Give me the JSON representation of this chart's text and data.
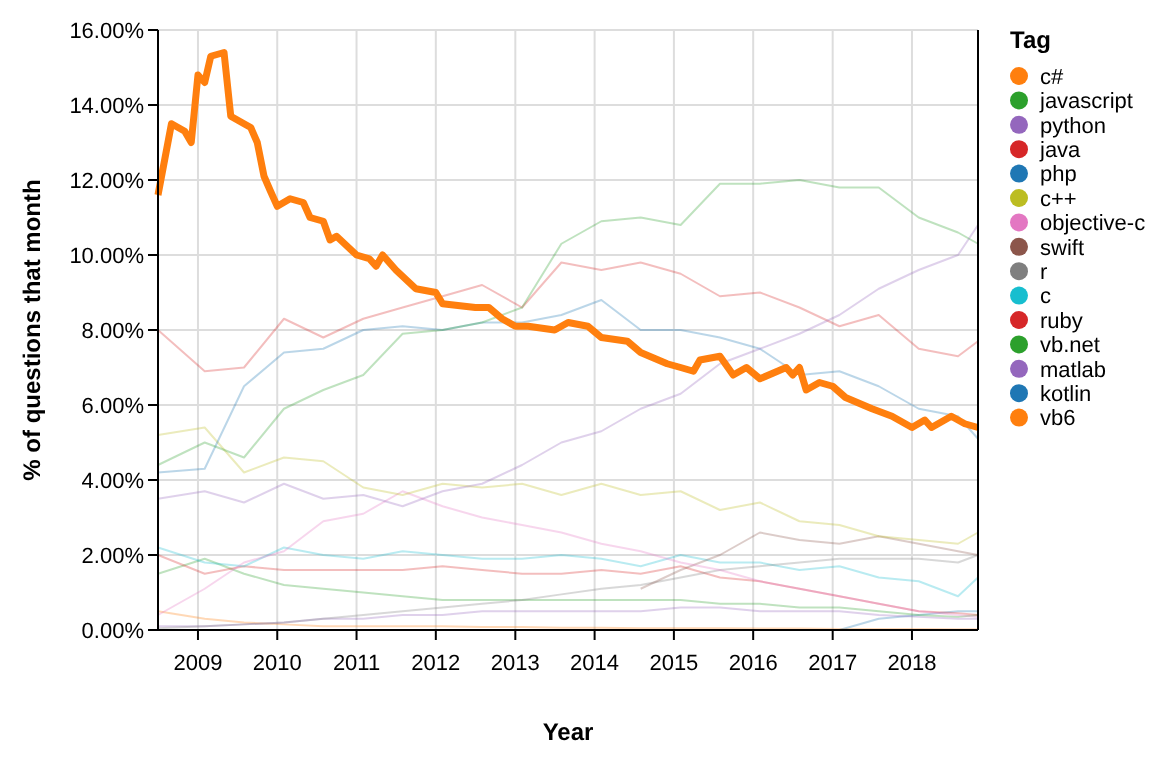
{
  "chart_data": {
    "type": "line",
    "xlabel": "Year",
    "ylabel": "% of questions that month",
    "legend_title": "Tag",
    "legend": "right",
    "grid": true,
    "marker": "none",
    "line_style": "solid",
    "xlim": [
      "2008-07",
      "2018-11"
    ],
    "xticks": [
      "2009",
      "2010",
      "2011",
      "2012",
      "2013",
      "2014",
      "2015",
      "2016",
      "2017",
      "2018"
    ],
    "ylim": [
      0,
      16
    ],
    "yticks": [
      {
        "value": 0,
        "label": "0.00%"
      },
      {
        "value": 2,
        "label": "2.00%"
      },
      {
        "value": 4,
        "label": "4.00%"
      },
      {
        "value": 6,
        "label": "6.00%"
      },
      {
        "value": 8,
        "label": "8.00%"
      },
      {
        "value": 10,
        "label": "10.00%"
      },
      {
        "value": 12,
        "label": "12.00%"
      },
      {
        "value": 14,
        "label": "14.00%"
      },
      {
        "value": 16,
        "label": "16.00%"
      }
    ],
    "x": [
      "2008-07",
      "2009-02",
      "2009-08",
      "2010-02",
      "2010-08",
      "2011-02",
      "2011-08",
      "2012-02",
      "2012-08",
      "2013-02",
      "2013-08",
      "2014-02",
      "2014-08",
      "2015-02",
      "2015-08",
      "2016-02",
      "2016-08",
      "2017-02",
      "2017-08",
      "2018-02",
      "2018-08",
      "2018-11"
    ],
    "series": [
      {
        "name": "c#",
        "color": "#ff7f0e",
        "x": [
          "2008-07",
          "2008-09",
          "2008-11",
          "2008-12",
          "2009-01",
          "2009-02",
          "2009-03",
          "2009-05",
          "2009-06",
          "2009-08",
          "2009-09",
          "2009-10",
          "2009-11",
          "2009-12",
          "2010-01",
          "2010-03",
          "2010-05",
          "2010-06",
          "2010-08",
          "2010-09",
          "2010-10",
          "2011-01",
          "2011-03",
          "2011-04",
          "2011-05",
          "2011-07",
          "2011-10",
          "2012-01",
          "2012-02",
          "2012-07",
          "2012-09",
          "2012-11",
          "2013-01",
          "2013-03",
          "2013-07",
          "2013-09",
          "2013-12",
          "2014-02",
          "2014-06",
          "2014-08",
          "2014-12",
          "2015-02",
          "2015-04",
          "2015-05",
          "2015-08",
          "2015-10",
          "2015-12",
          "2016-02",
          "2016-06",
          "2016-07",
          "2016-08",
          "2016-09",
          "2016-11",
          "2017-01",
          "2017-03",
          "2017-07",
          "2017-10",
          "2018-01",
          "2018-03",
          "2018-04",
          "2018-07",
          "2018-09",
          "2018-11"
        ],
        "values": [
          11.6,
          13.5,
          13.3,
          13.0,
          14.8,
          14.6,
          15.3,
          15.4,
          13.7,
          13.5,
          13.4,
          13.0,
          12.1,
          11.7,
          11.3,
          11.5,
          11.4,
          11.0,
          10.9,
          10.4,
          10.5,
          10.0,
          9.9,
          9.7,
          10.0,
          9.6,
          9.1,
          9.0,
          8.7,
          8.6,
          8.6,
          8.3,
          8.1,
          8.1,
          8.0,
          8.2,
          8.1,
          7.8,
          7.7,
          7.4,
          7.1,
          7.0,
          6.9,
          7.2,
          7.3,
          6.8,
          7.0,
          6.7,
          7.0,
          6.8,
          7.0,
          6.4,
          6.6,
          6.5,
          6.2,
          5.9,
          5.7,
          5.4,
          5.6,
          5.4,
          5.7,
          5.5,
          5.4
        ]
      },
      {
        "name": "javascript",
        "color": "#2ca02c",
        "values": [
          4.4,
          5.0,
          4.6,
          5.9,
          6.4,
          6.8,
          7.9,
          8.0,
          8.2,
          8.6,
          10.3,
          10.9,
          11.0,
          10.8,
          11.9,
          11.9,
          12.0,
          11.8,
          11.8,
          11.0,
          10.6,
          10.3
        ]
      },
      {
        "name": "python",
        "color": "#9467bd",
        "values": [
          3.5,
          3.7,
          3.4,
          3.9,
          3.5,
          3.6,
          3.3,
          3.7,
          3.9,
          4.4,
          5.0,
          5.3,
          5.9,
          6.3,
          7.1,
          7.5,
          7.9,
          8.4,
          9.1,
          9.6,
          10.0,
          10.8
        ]
      },
      {
        "name": "java",
        "color": "#d62728",
        "values": [
          8.0,
          6.9,
          7.0,
          8.3,
          7.8,
          8.3,
          8.6,
          8.9,
          9.2,
          8.6,
          9.8,
          9.6,
          9.8,
          9.5,
          8.9,
          9.0,
          8.6,
          8.1,
          8.4,
          7.5,
          7.3,
          7.7
        ]
      },
      {
        "name": "php",
        "color": "#1f77b4",
        "values": [
          4.2,
          4.3,
          6.5,
          7.4,
          7.5,
          8.0,
          8.1,
          8.0,
          8.2,
          8.2,
          8.4,
          8.8,
          8.0,
          8.0,
          7.8,
          7.5,
          6.8,
          6.9,
          6.5,
          5.9,
          5.7,
          5.1
        ]
      },
      {
        "name": "c++",
        "color": "#bcbd22",
        "values": [
          5.2,
          5.4,
          4.2,
          4.6,
          4.5,
          3.8,
          3.6,
          3.9,
          3.8,
          3.9,
          3.6,
          3.9,
          3.6,
          3.7,
          3.2,
          3.4,
          2.9,
          2.8,
          2.5,
          2.4,
          2.3,
          2.6
        ]
      },
      {
        "name": "objective-c",
        "color": "#e377c2",
        "values": [
          0.4,
          1.1,
          1.8,
          2.1,
          2.9,
          3.1,
          3.7,
          3.3,
          3.0,
          2.8,
          2.6,
          2.3,
          2.1,
          1.8,
          1.6,
          1.3,
          1.1,
          0.9,
          0.7,
          0.5,
          0.4,
          0.35
        ]
      },
      {
        "name": "swift",
        "color": "#8c564b",
        "values": [
          null,
          null,
          null,
          null,
          null,
          null,
          null,
          null,
          null,
          null,
          null,
          null,
          1.1,
          1.6,
          2.0,
          2.6,
          2.4,
          2.3,
          2.5,
          2.3,
          2.1,
          2.0
        ]
      },
      {
        "name": "r",
        "color": "#7f7f7f",
        "values": [
          0.05,
          0.1,
          0.15,
          0.2,
          0.3,
          0.4,
          0.5,
          0.6,
          0.7,
          0.8,
          0.95,
          1.1,
          1.2,
          1.4,
          1.6,
          1.7,
          1.8,
          1.9,
          1.9,
          1.9,
          1.8,
          2.0
        ]
      },
      {
        "name": "c",
        "color": "#17becf",
        "values": [
          2.2,
          1.8,
          1.7,
          2.2,
          2.0,
          1.9,
          2.1,
          2.0,
          1.9,
          1.9,
          2.0,
          1.9,
          1.7,
          2.0,
          1.8,
          1.8,
          1.6,
          1.7,
          1.4,
          1.3,
          0.9,
          1.4
        ]
      },
      {
        "name": "ruby",
        "color": "#d62728",
        "values": [
          2.0,
          1.5,
          1.7,
          1.6,
          1.6,
          1.6,
          1.6,
          1.7,
          1.6,
          1.5,
          1.5,
          1.6,
          1.5,
          1.7,
          1.4,
          1.3,
          1.1,
          0.9,
          0.7,
          0.5,
          0.45,
          0.4
        ]
      },
      {
        "name": "vb.net",
        "color": "#2ca02c",
        "values": [
          1.5,
          1.9,
          1.5,
          1.2,
          1.1,
          1.0,
          0.9,
          0.8,
          0.8,
          0.8,
          0.8,
          0.8,
          0.8,
          0.8,
          0.7,
          0.7,
          0.6,
          0.6,
          0.5,
          0.4,
          0.35,
          0.4
        ]
      },
      {
        "name": "matlab",
        "color": "#9467bd",
        "values": [
          0.1,
          0.1,
          0.15,
          0.2,
          0.3,
          0.3,
          0.4,
          0.4,
          0.5,
          0.5,
          0.5,
          0.5,
          0.5,
          0.6,
          0.6,
          0.5,
          0.5,
          0.5,
          0.4,
          0.35,
          0.3,
          0.3
        ]
      },
      {
        "name": "kotlin",
        "color": "#1f77b4",
        "values": [
          0,
          0,
          0,
          0,
          0,
          0,
          0,
          0,
          0,
          0,
          0,
          0,
          0,
          0,
          0,
          0,
          0,
          0,
          0.3,
          0.4,
          0.5,
          0.5
        ]
      },
      {
        "name": "vb6",
        "color": "#ff7f0e",
        "values": [
          0.5,
          0.3,
          0.2,
          0.15,
          0.1,
          0.1,
          0.1,
          0.1,
          0.08,
          0.08,
          0.06,
          0.06,
          0.05,
          0.05,
          0.05,
          0.04,
          0.04,
          0.03,
          0.03,
          0.03,
          0.02,
          0.02
        ]
      }
    ]
  }
}
